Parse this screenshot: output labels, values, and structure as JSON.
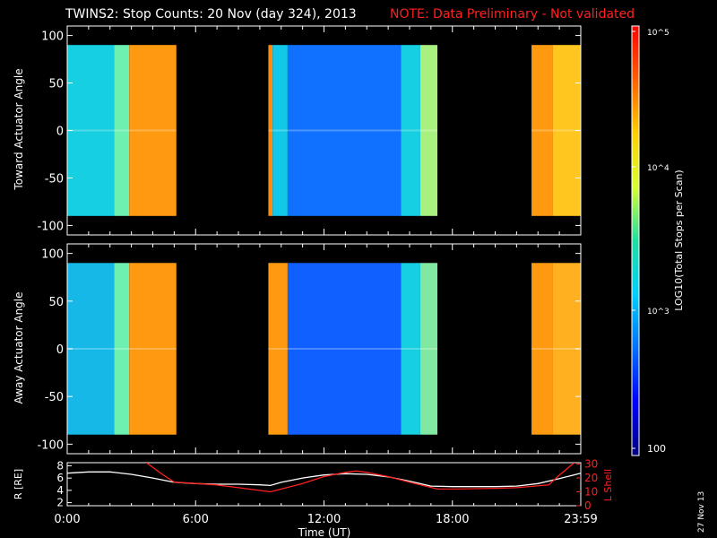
{
  "header": {
    "title": "TWINS2: Stop Counts: 20 Nov (day 324), 2013",
    "note": "NOTE: Data Preliminary - Not validated"
  },
  "datestamp": "27 Nov 13",
  "colorbar": {
    "label": "LOG10(Total Stops per Scan)",
    "ticks": [
      "10^5",
      "10^4",
      "10^3",
      "100"
    ],
    "colors": [
      "#000080",
      "#0000ff",
      "#0070ff",
      "#00d0ff",
      "#20e0a0",
      "#d8ff30",
      "#ffd000",
      "#ff6000",
      "#ff0000"
    ]
  },
  "chart_data": [
    {
      "type": "heatmap",
      "panel": "toward",
      "ylabel": "Toward Actuator Angle",
      "y_ticks": [
        "100",
        "50",
        "0",
        "-50",
        "-100"
      ],
      "ylim": [
        -110,
        110
      ],
      "xlim_hours": [
        0,
        24
      ],
      "data_angle_range": [
        -90,
        90
      ],
      "segments": [
        {
          "start_h": 0.0,
          "end_h": 5.1,
          "bands": [
            {
              "to_h": 2.2,
              "color": "#16cfe0"
            },
            {
              "to_h": 2.9,
              "color": "#6df0b0"
            },
            {
              "to_h": 5.1,
              "color": "#ff9a10"
            }
          ]
        },
        {
          "start_h": 9.4,
          "end_h": 17.3,
          "bands": [
            {
              "to_h": 9.6,
              "color": "#ff8a10"
            },
            {
              "to_h": 10.3,
              "color": "#12c8e8"
            },
            {
              "to_h": 15.6,
              "color": "#1070ff"
            },
            {
              "to_h": 16.5,
              "color": "#16cfe0"
            },
            {
              "to_h": 17.3,
              "color": "#a8f080"
            }
          ]
        },
        {
          "start_h": 21.7,
          "end_h": 24.0,
          "bands": [
            {
              "to_h": 22.7,
              "color": "#ff9a10"
            },
            {
              "to_h": 24.0,
              "color": "#ffc620"
            }
          ]
        }
      ]
    },
    {
      "type": "heatmap",
      "panel": "away",
      "ylabel": "Away Actuator Angle",
      "y_ticks": [
        "100",
        "50",
        "0",
        "-50",
        "-100"
      ],
      "ylim": [
        -110,
        110
      ],
      "xlim_hours": [
        0,
        24
      ],
      "data_angle_range": [
        -90,
        90
      ],
      "segments": [
        {
          "start_h": 0.0,
          "end_h": 5.1,
          "bands": [
            {
              "to_h": 2.2,
              "color": "#16b8e8"
            },
            {
              "to_h": 2.9,
              "color": "#6df0b0"
            },
            {
              "to_h": 5.1,
              "color": "#ff9a10"
            }
          ]
        },
        {
          "start_h": 9.4,
          "end_h": 17.3,
          "bands": [
            {
              "to_h": 10.3,
              "color": "#ff9a10"
            },
            {
              "to_h": 15.6,
              "color": "#1060ff"
            },
            {
              "to_h": 16.5,
              "color": "#16cfe0"
            },
            {
              "to_h": 17.3,
              "color": "#80e8a0"
            }
          ]
        },
        {
          "start_h": 21.7,
          "end_h": 24.0,
          "bands": [
            {
              "to_h": 22.7,
              "color": "#ff9a10"
            },
            {
              "to_h": 24.0,
              "color": "#ffb020"
            }
          ]
        }
      ]
    },
    {
      "type": "line",
      "panel": "orbit",
      "ylabel_left": "R [RE]",
      "ylabel_right": "L Shell",
      "xlabel": "Time (UT)",
      "x_ticks": [
        "0:00",
        "6:00",
        "12:00",
        "18:00",
        "23:59"
      ],
      "x_tick_hours": [
        0,
        6,
        12,
        18,
        24
      ],
      "y_left_ticks": [
        "8",
        "6",
        "4",
        "2"
      ],
      "y_left_lim": [
        1.5,
        8.5
      ],
      "y_right_ticks": [
        "30",
        "20",
        "10",
        "0"
      ],
      "y_right_lim": [
        0,
        31
      ],
      "series": [
        {
          "axis": "left",
          "color": "#ffffff",
          "x": [
            0,
            1,
            2,
            3,
            4,
            5,
            6,
            7,
            8,
            9,
            9.5,
            10,
            11,
            12,
            13,
            14,
            15,
            16,
            17,
            18,
            19,
            20,
            21,
            22,
            23,
            24
          ],
          "y": [
            6.8,
            7.0,
            7.0,
            6.6,
            6.0,
            5.3,
            5.1,
            5.0,
            5.0,
            4.9,
            4.8,
            5.3,
            6.0,
            6.5,
            6.7,
            6.6,
            6.2,
            5.5,
            4.7,
            4.6,
            4.6,
            4.6,
            4.7,
            5.1,
            5.9,
            6.8
          ]
        },
        {
          "axis": "right",
          "color": "#ff2020",
          "x": [
            3.7,
            4.5,
            5.0,
            6,
            7,
            8,
            9.5,
            10,
            11,
            12,
            13,
            13.5,
            14,
            15,
            16,
            17.3,
            18,
            20,
            21,
            22.5,
            23,
            23.7
          ],
          "y": [
            31,
            22,
            17,
            16,
            15,
            13,
            10,
            12,
            16,
            21,
            24,
            25,
            24,
            21,
            17,
            12,
            12,
            12.5,
            13,
            15,
            22,
            31
          ]
        }
      ]
    }
  ]
}
